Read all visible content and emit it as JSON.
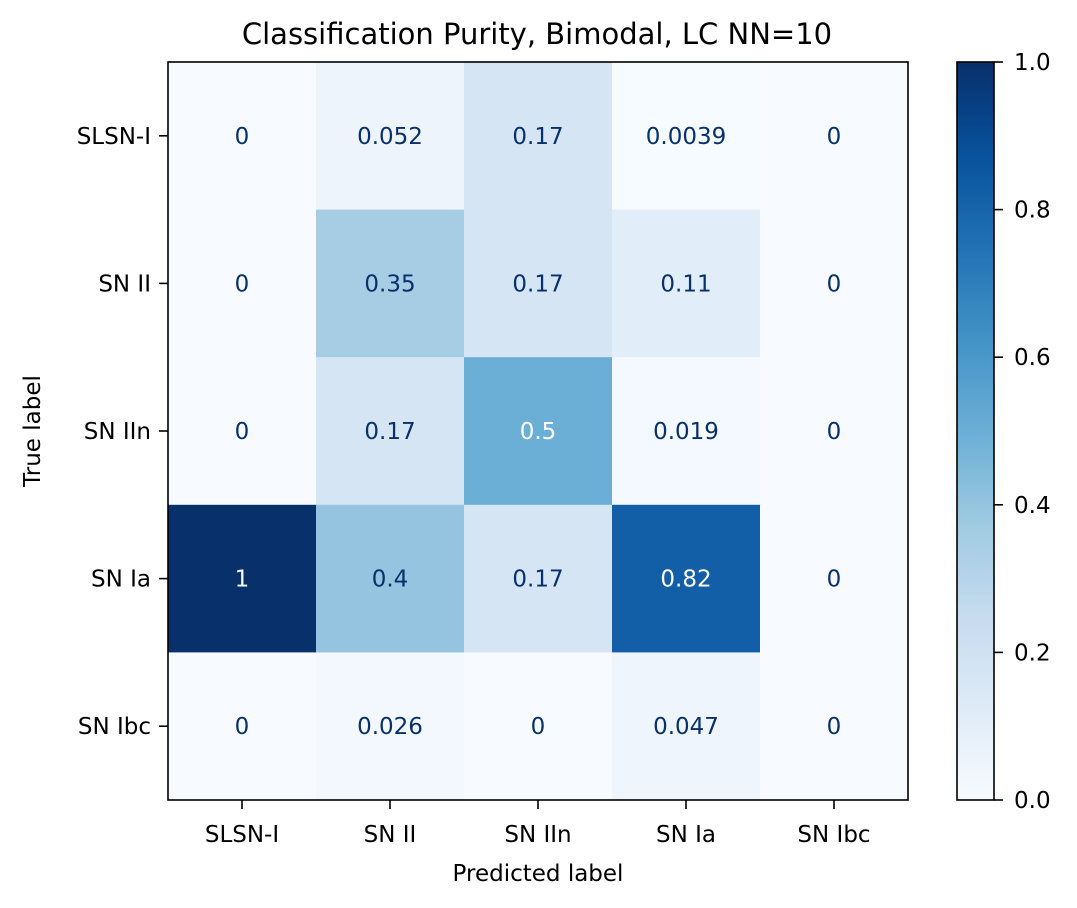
{
  "chart_data": {
    "type": "heatmap",
    "title": "Classification Purity, Bimodal, LC NN=10",
    "xlabel": "Predicted label",
    "ylabel": "True label",
    "x_categories": [
      "SLSN-I",
      "SN II",
      "SN IIn",
      "SN Ia",
      "SN Ibc"
    ],
    "y_categories": [
      "SLSN-I",
      "SN II",
      "SN IIn",
      "SN Ia",
      "SN Ibc"
    ],
    "values": [
      [
        0,
        0.052,
        0.17,
        0.0039,
        0
      ],
      [
        0,
        0.35,
        0.17,
        0.11,
        0
      ],
      [
        0,
        0.17,
        0.5,
        0.019,
        0
      ],
      [
        1,
        0.4,
        0.17,
        0.82,
        0
      ],
      [
        0,
        0.026,
        0,
        0.047,
        0
      ]
    ],
    "labels": [
      [
        "0",
        "0.052",
        "0.17",
        "0.0039",
        "0"
      ],
      [
        "0",
        "0.35",
        "0.17",
        "0.11",
        "0"
      ],
      [
        "0",
        "0.17",
        "0.5",
        "0.019",
        "0"
      ],
      [
        "1",
        "0.4",
        "0.17",
        "0.82",
        "0"
      ],
      [
        "0",
        "0.026",
        "0",
        "0.047",
        "0"
      ]
    ],
    "colorbar": {
      "range": [
        0,
        1
      ],
      "ticks": [
        "0.0",
        "0.2",
        "0.4",
        "0.6",
        "0.8",
        "1.0"
      ]
    },
    "colormap": "Blues",
    "grid": false
  }
}
